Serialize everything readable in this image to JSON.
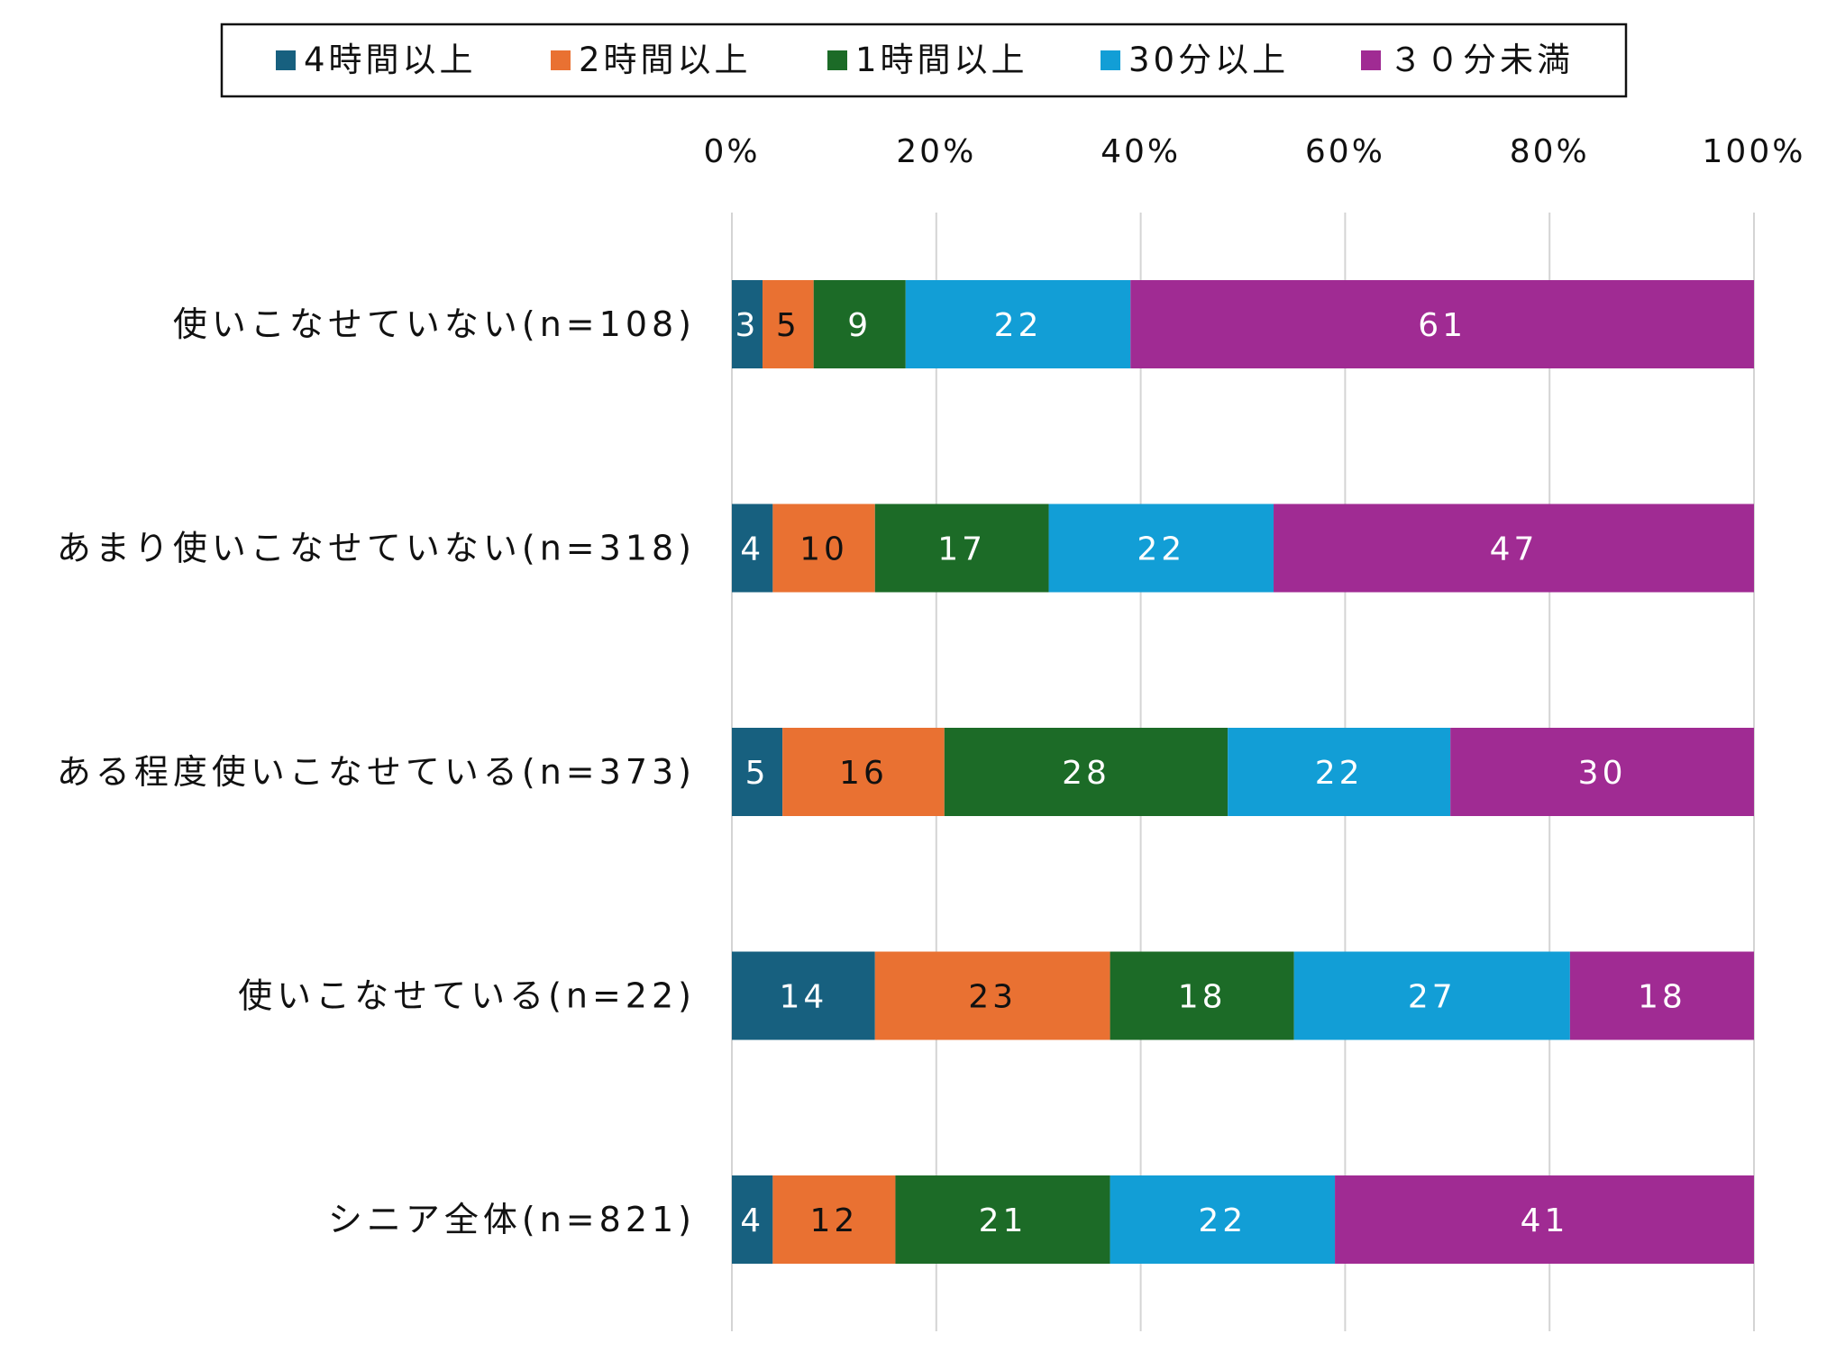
{
  "chart_data": {
    "type": "bar",
    "orientation": "horizontal",
    "stacked": true,
    "percent_stacked": true,
    "categories": [
      "使いこなせていない(n=108)",
      "あまり使いこなせていない(n=318)",
      "ある程度使いこなせている(n=373)",
      "使いこなせている(n=22)",
      "シニア全体(n=821)"
    ],
    "series": [
      {
        "name": "4時間以上",
        "color": "#17607f",
        "values": [
          3,
          4,
          5,
          14,
          4
        ]
      },
      {
        "name": "2時間以上",
        "color": "#e97132",
        "values": [
          5,
          10,
          16,
          23,
          12
        ]
      },
      {
        "name": "1時間以上",
        "color": "#1c6b27",
        "values": [
          9,
          17,
          28,
          18,
          21
        ]
      },
      {
        "name": "30分以上",
        "color": "#129ed6",
        "values": [
          22,
          22,
          22,
          27,
          22
        ]
      },
      {
        "name": "３０分未満",
        "color": "#a02b93",
        "values": [
          61,
          47,
          30,
          18,
          41
        ]
      }
    ],
    "x_ticks": [
      "0%",
      "20%",
      "40%",
      "60%",
      "80%",
      "100%"
    ],
    "xlim": [
      0,
      100
    ],
    "axis_position": "top",
    "grid": true,
    "legend": "top",
    "title": "",
    "xlabel": "",
    "ylabel": ""
  }
}
